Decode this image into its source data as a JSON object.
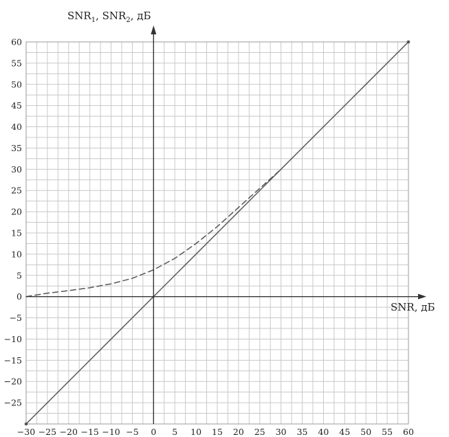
{
  "chart_data": {
    "type": "line",
    "title": "",
    "xlabel": "SNR, дБ",
    "ylabel": {
      "part1": "SNR",
      "sub1": "1",
      "sep": ", ",
      "part2": "SNR",
      "sub2": "2",
      "unit": ", дБ"
    },
    "xlim": [
      -30,
      60
    ],
    "ylim": [
      -30,
      60
    ],
    "x_ticks": [
      -30,
      -25,
      -20,
      -15,
      -10,
      -5,
      0,
      5,
      10,
      15,
      20,
      25,
      30,
      35,
      40,
      45,
      50,
      55,
      60
    ],
    "y_ticks": [
      60,
      55,
      50,
      45,
      40,
      35,
      30,
      25,
      20,
      15,
      10,
      5,
      0,
      -5,
      -10,
      -15,
      -20,
      -25
    ],
    "x_tick_labels": [
      "−30",
      "−25",
      "−20",
      "−15",
      "−10",
      "−5",
      "0",
      "5",
      "10",
      "15",
      "20",
      "25",
      "30",
      "35",
      "40",
      "45",
      "50",
      "55",
      "60"
    ],
    "y_tick_labels": [
      "60",
      "55",
      "50",
      "45",
      "40",
      "35",
      "30",
      "25",
      "20",
      "15",
      "10",
      "5",
      "0",
      "−5",
      "−10",
      "−15",
      "−20",
      "−25"
    ],
    "grid": true,
    "grid_step": 2.5,
    "series": [
      {
        "style": "solid",
        "color": "#555555",
        "x": [
          -30,
          60
        ],
        "y": [
          -30,
          60
        ]
      },
      {
        "style": "dashed",
        "color": "#555555",
        "x": [
          -30,
          -25,
          -20,
          -15,
          -10,
          -5,
          0,
          5,
          10,
          15,
          20,
          25,
          30
        ],
        "y": [
          0.0,
          0.8,
          1.4,
          2.1,
          3.0,
          4.3,
          6.3,
          9.0,
          12.5,
          16.5,
          21.0,
          25.5,
          30.0
        ]
      }
    ]
  }
}
